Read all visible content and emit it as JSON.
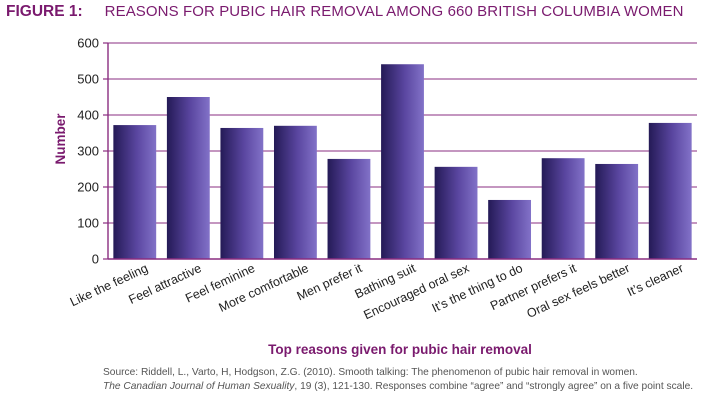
{
  "figure": {
    "label": "FIGURE 1:",
    "title": "REASONS FOR PUBIC HAIR REMOVAL AMONG 660 BRITISH COLUMBIA WOMEN"
  },
  "colors": {
    "title": "#7a1a6e",
    "axis": "#8a2d80",
    "bar_dark": "#241a56",
    "bar_mid": "#5a46a0",
    "bar_light": "#8272c8"
  },
  "chart_data": {
    "type": "bar",
    "categories": [
      "Like the feeling",
      "Feel attractive",
      "Feel feminine",
      "More comfortable",
      "Men prefer it",
      "Bathing suit",
      "Encouraged oral sex",
      "It’s the thing to do",
      "Partner prefers it",
      "Oral sex feels better",
      "It’s cleaner"
    ],
    "values": [
      372,
      450,
      364,
      370,
      278,
      541,
      256,
      164,
      280,
      264,
      378
    ],
    "ylim": [
      0,
      600
    ],
    "yticks": [
      0,
      100,
      200,
      300,
      400,
      500,
      600
    ],
    "xlabel": "Top reasons given for pubic hair removal",
    "ylabel": "Number",
    "grid": true
  },
  "source": {
    "line1": "Source: Riddell, L., Varto, H, Hodgson, Z.G. (2010).  Smooth talking: The phenomenon of pubic hair removal in women.",
    "journal": "The Canadian Journal of Human Sexuality",
    "line2_rest": ", 19 (3), 121-130. Responses combine “agree” and “strongly agree” on a five point scale."
  }
}
